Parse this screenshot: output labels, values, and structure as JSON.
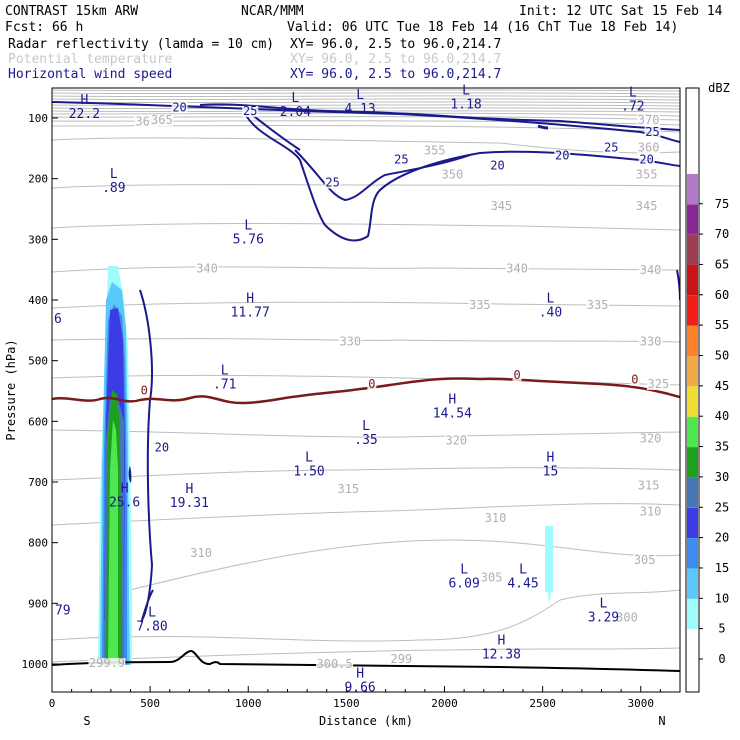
{
  "header": {
    "model": "CONTRAST 15km ARW",
    "center": "NCAR/MMM",
    "init": "Init: 12 UTC Sat 15 Feb 14",
    "fcst": "Fcst:   66 h",
    "valid": "Valid: 06 UTC Tue 18 Feb 14 (16 ChT Tue 18 Feb 14)",
    "fields": [
      {
        "name": "Radar reflectivity (lamda = 10 cm)",
        "xy": "XY=  96.0,  2.5 to  96.0,214.7",
        "color": "#000000"
      },
      {
        "name": "Potential temperature",
        "xy": "XY=  96.0,  2.5 to  96.0,214.7",
        "color": "#c8c8c8"
      },
      {
        "name": "Horizontal wind speed",
        "xy": "XY=  96.0,  2.5 to  96.0,214.7",
        "color": "#1a1a8c"
      }
    ]
  },
  "chart_data": {
    "type": "cross-section",
    "xlabel": "Distance (km)",
    "ylabel": "Pressure (hPa)",
    "xlim": [
      0,
      3200
    ],
    "ylim": [
      1050,
      50
    ],
    "x_ticks": [
      0,
      500,
      1000,
      1500,
      2000,
      2500,
      3000
    ],
    "y_ticks": [
      100,
      200,
      300,
      400,
      500,
      600,
      700,
      800,
      900,
      1000
    ],
    "x_end_labels": {
      "left": "S",
      "right": "N"
    },
    "colorbar": {
      "unit": "dBZ",
      "levels": [
        {
          "label": "0",
          "color": "#ffffff"
        },
        {
          "label": "5",
          "color": "#9ffcfc"
        },
        {
          "label": "10",
          "color": "#5ac8f8"
        },
        {
          "label": "15",
          "color": "#3c8cf0"
        },
        {
          "label": "20",
          "color": "#3c3ce6"
        },
        {
          "label": "25",
          "color": "#4678b4"
        },
        {
          "label": "30",
          "color": "#1ea01e"
        },
        {
          "label": "35",
          "color": "#50e650"
        },
        {
          "label": "40",
          "color": "#f0dc32"
        },
        {
          "label": "45",
          "color": "#f0aa46"
        },
        {
          "label": "50",
          "color": "#fa8228"
        },
        {
          "label": "55",
          "color": "#f01e14"
        },
        {
          "label": "60",
          "color": "#c81414"
        },
        {
          "label": "65",
          "color": "#a03c50"
        },
        {
          "label": "70",
          "color": "#8c2896"
        },
        {
          "label": "75",
          "color": "#b478c8"
        }
      ]
    },
    "theta_labels": [
      {
        "v": "360",
        "x": 480,
        "p": 112
      },
      {
        "v": "365",
        "x": 560,
        "p": 110
      },
      {
        "v": "370",
        "x": 3040,
        "p": 110
      },
      {
        "v": "355",
        "x": 1950,
        "p": 160
      },
      {
        "v": "360",
        "x": 3040,
        "p": 155
      },
      {
        "v": "350",
        "x": 2040,
        "p": 200
      },
      {
        "v": "355",
        "x": 3030,
        "p": 200
      },
      {
        "v": "345",
        "x": 2290,
        "p": 252
      },
      {
        "v": "345",
        "x": 3030,
        "p": 252
      },
      {
        "v": "340",
        "x": 790,
        "p": 355
      },
      {
        "v": "340",
        "x": 2370,
        "p": 355
      },
      {
        "v": "340",
        "x": 3050,
        "p": 357
      },
      {
        "v": "335",
        "x": 2180,
        "p": 415
      },
      {
        "v": "335",
        "x": 2780,
        "p": 415
      },
      {
        "v": "330",
        "x": 1520,
        "p": 475
      },
      {
        "v": "330",
        "x": 3050,
        "p": 475
      },
      {
        "v": "325",
        "x": 3090,
        "p": 545
      },
      {
        "v": "320",
        "x": 2060,
        "p": 638
      },
      {
        "v": "320",
        "x": 3050,
        "p": 635
      },
      {
        "v": "315",
        "x": 1510,
        "p": 718
      },
      {
        "v": "315",
        "x": 3040,
        "p": 712
      },
      {
        "v": "310",
        "x": 2260,
        "p": 766
      },
      {
        "v": "310",
        "x": 3050,
        "p": 755
      },
      {
        "v": "310",
        "x": 760,
        "p": 824
      },
      {
        "v": "305",
        "x": 3020,
        "p": 835
      },
      {
        "v": "305",
        "x": 2240,
        "p": 864
      },
      {
        "v": "300",
        "x": 2930,
        "p": 930
      },
      {
        "v": "299",
        "x": 1780,
        "p": 998
      },
      {
        "v": "300.5",
        "x": 1440,
        "p": 1007
      },
      {
        "v": "299.9",
        "x": 280,
        "p": 1005
      }
    ],
    "wind_labels": [
      {
        "v": "20",
        "x": 650,
        "p": 89
      },
      {
        "v": "25",
        "x": 1010,
        "p": 95
      },
      {
        "v": "25",
        "x": 3060,
        "p": 130
      },
      {
        "v": "25",
        "x": 2850,
        "p": 155
      },
      {
        "v": "25",
        "x": 1780,
        "p": 175
      },
      {
        "v": "20",
        "x": 2270,
        "p": 185
      },
      {
        "v": "20",
        "x": 2600,
        "p": 168
      },
      {
        "v": "20",
        "x": 3030,
        "p": 175
      },
      {
        "v": "25",
        "x": 1430,
        "p": 213
      },
      {
        "v": "20",
        "x": 560,
        "p": 650
      }
    ],
    "zero_labels": [
      {
        "v": "0",
        "x": 470,
        "p": 556
      },
      {
        "v": "0",
        "x": 1630,
        "p": 545
      },
      {
        "v": "0",
        "x": 2370,
        "p": 530
      },
      {
        "v": "0",
        "x": 2970,
        "p": 538
      }
    ],
    "extrema": [
      {
        "kind": "H",
        "v": "22.2",
        "x": 165,
        "p": 100
      },
      {
        "kind": "L",
        "v": "2.04",
        "x": 1240,
        "p": 97
      },
      {
        "kind": "L",
        "v": "4.13",
        "x": 1570,
        "p": 92
      },
      {
        "kind": "L",
        "v": "1.18",
        "x": 2110,
        "p": 84
      },
      {
        "kind": "L",
        "v": ".72",
        "x": 2960,
        "p": 88
      },
      {
        "kind": "L",
        "v": ".89",
        "x": 315,
        "p": 222
      },
      {
        "kind": "L",
        "v": "5.76",
        "x": 1000,
        "p": 307
      },
      {
        "kind": "H",
        "v": "11.77",
        "x": 1010,
        "p": 427
      },
      {
        "kind": "L",
        "v": ".40",
        "x": 2540,
        "p": 427
      },
      {
        "kind": "L",
        "v": ".71",
        "x": 880,
        "p": 546
      },
      {
        "kind": "H",
        "v": "14.54",
        "x": 2040,
        "p": 594
      },
      {
        "kind": "L",
        "v": ".35",
        "x": 1600,
        "p": 637
      },
      {
        "kind": "L",
        "v": "1.50",
        "x": 1310,
        "p": 689
      },
      {
        "kind": "H",
        "v": "15",
        "x": 2540,
        "p": 689
      },
      {
        "kind": "H",
        "v": "25.6",
        "x": 370,
        "p": 740
      },
      {
        "kind": "H",
        "v": "19.31",
        "x": 700,
        "p": 741
      },
      {
        "kind": "L",
        "v": "6.09",
        "x": 2100,
        "p": 874
      },
      {
        "kind": "L",
        "v": "4.45",
        "x": 2400,
        "p": 874
      },
      {
        "kind": "L",
        "v": "3.29",
        "x": 2810,
        "p": 930
      },
      {
        "kind": "L",
        "v": "7.80",
        "x": 510,
        "p": 945
      },
      {
        "kind": "H",
        "v": "12.38",
        "x": 2290,
        "p": 991
      },
      {
        "kind": "H",
        "v": "9.66",
        "x": 1570,
        "p": 1045
      },
      {
        "kind": "",
        "v": "79",
        "x": 55,
        "p": 918
      },
      {
        "kind": "",
        "v": "6",
        "x": 30,
        "p": 438
      }
    ]
  }
}
